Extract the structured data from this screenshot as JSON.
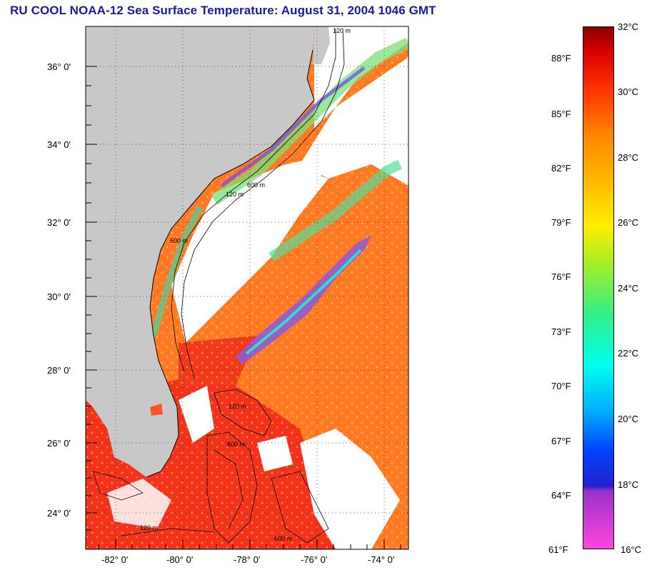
{
  "title": "RU COOL  NOAA-12  Sea Surface Temperature:  August 31, 2004 1046 GMT",
  "map": {
    "lat_labels": [
      "36° 0'",
      "34° 0'",
      "32° 0'",
      "30° 0'",
      "28° 0'",
      "26° 0'",
      "24° 0'"
    ],
    "lon_labels": [
      "-82° 0'",
      "-80° 0'",
      "-78° 0'",
      "-76° 0'",
      "-74° 0'"
    ],
    "lat_values": [
      36,
      34,
      32,
      30,
      28,
      26,
      24
    ],
    "lon_values": [
      -82,
      -80,
      -78,
      -76,
      -74
    ],
    "lat_range": [
      23.0,
      37.0
    ],
    "lon_range": [
      -83.0,
      -73.0
    ],
    "contour_labels": [
      "120 m",
      "600 m",
      "120 m",
      "600 m",
      "120 m",
      "600 m",
      "120 m",
      "600 m"
    ],
    "colors": {
      "land": "#c8c8c8",
      "cloud": "#ffffff",
      "warm": "#ff6a1a",
      "hot": "#f02418",
      "frame": "#000000"
    }
  },
  "colorbar": {
    "fahrenheit": [
      "88°F",
      "85°F",
      "82°F",
      "79°F",
      "76°F",
      "73°F",
      "70°F",
      "67°F",
      "64°F",
      "61°F"
    ],
    "celsius": [
      "32°C",
      "30°C",
      "28°C",
      "26°C",
      "24°C",
      "22°C",
      "20°C",
      "18°C",
      "16°C"
    ],
    "celsius_range": [
      16,
      32
    ]
  }
}
